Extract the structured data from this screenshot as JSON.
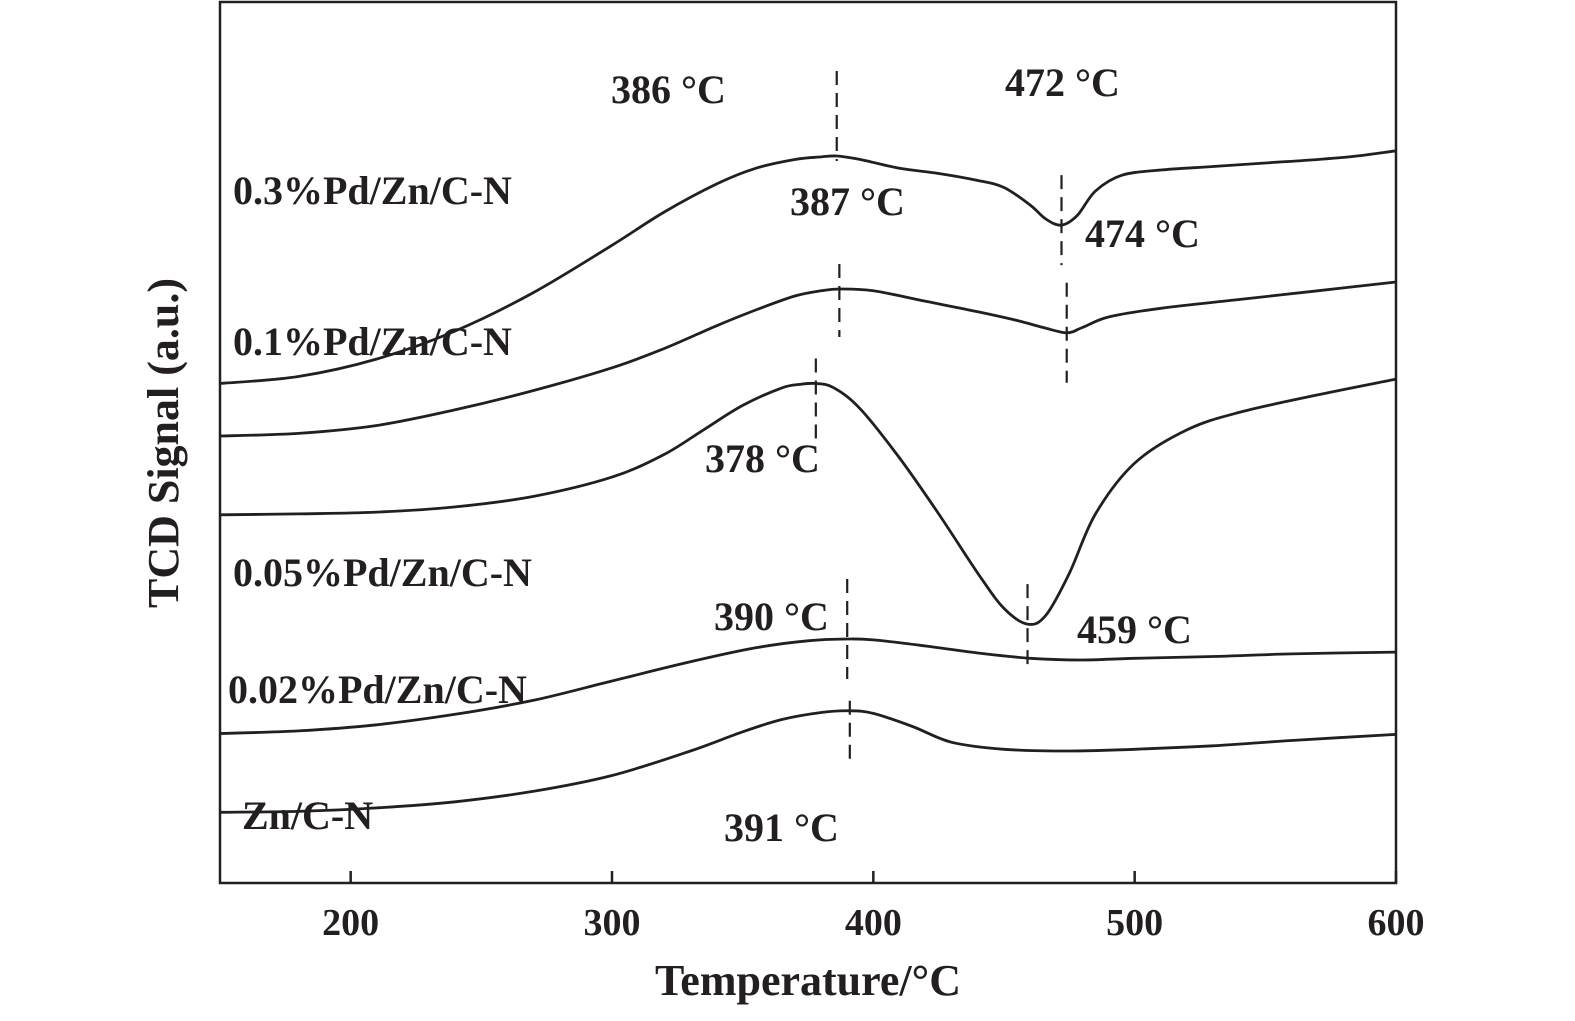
{
  "chart_data": {
    "type": "line",
    "title": "",
    "xlabel": "Temperature/°C",
    "ylabel": "TCD Signal (a.u.)",
    "xlim": [
      150,
      600
    ],
    "xticks": [
      200,
      300,
      400,
      500,
      600
    ],
    "xtick_labels": [
      "200",
      "300",
      "400",
      "500",
      "600"
    ],
    "y_units": "arbitrary (curves vertically offset)",
    "grid": false,
    "legend": "none (curves labeled directly)",
    "line_color": "#231f20",
    "series": [
      {
        "name": "0.3%Pd/Zn/C-N",
        "x": [
          150,
          180,
          210,
          240,
          270,
          300,
          320,
          340,
          355,
          370,
          380,
          386,
          395,
          410,
          425,
          440,
          450,
          460,
          466,
          472,
          478,
          485,
          495,
          510,
          530,
          550,
          570,
          585,
          600
        ],
        "y": [
          3.0,
          3.4,
          4.4,
          6.0,
          8.2,
          10.9,
          12.8,
          14.4,
          15.3,
          15.8,
          15.95,
          16.0,
          15.8,
          15.3,
          15.0,
          14.6,
          14.2,
          13.2,
          12.4,
          12.05,
          12.6,
          14.0,
          14.9,
          15.2,
          15.4,
          15.6,
          15.8,
          16.0,
          16.3
        ]
      },
      {
        "name": "0.1%Pd/Zn/C-N",
        "x": [
          150,
          180,
          210,
          240,
          270,
          300,
          320,
          340,
          355,
          370,
          380,
          387,
          400,
          420,
          440,
          455,
          465,
          474,
          480,
          490,
          510,
          540,
          570,
          600
        ],
        "y": [
          0.0,
          0.15,
          0.6,
          1.5,
          2.6,
          3.9,
          5.0,
          6.3,
          7.2,
          8.0,
          8.3,
          8.4,
          8.3,
          7.7,
          7.1,
          6.6,
          6.2,
          5.9,
          6.2,
          6.8,
          7.3,
          7.8,
          8.3,
          8.8
        ]
      },
      {
        "name": "0.05%Pd/Zn/C-N",
        "x": [
          150,
          180,
          210,
          240,
          270,
          300,
          320,
          335,
          350,
          365,
          372,
          378,
          385,
          395,
          410,
          425,
          440,
          450,
          459,
          466,
          475,
          485,
          500,
          520,
          540,
          570,
          600
        ],
        "y": [
          -4.5,
          -4.45,
          -4.35,
          -4.05,
          -3.45,
          -2.35,
          -1.05,
          0.35,
          1.75,
          2.75,
          2.95,
          3.0,
          2.75,
          1.55,
          -1.25,
          -4.45,
          -7.85,
          -9.85,
          -10.75,
          -10.25,
          -7.85,
          -4.45,
          -1.55,
          0.35,
          1.35,
          2.35,
          3.25
        ]
      },
      {
        "name": "0.02%Pd/Zn/C-N",
        "x": [
          150,
          180,
          210,
          240,
          270,
          300,
          330,
          355,
          375,
          390,
          400,
          420,
          440,
          460,
          480,
          500,
          530,
          560,
          600
        ],
        "y": [
          -17.0,
          -16.85,
          -16.5,
          -15.9,
          -15.1,
          -14.0,
          -12.9,
          -12.1,
          -11.7,
          -11.6,
          -11.65,
          -12.0,
          -12.4,
          -12.7,
          -12.8,
          -12.7,
          -12.6,
          -12.45,
          -12.35
        ]
      },
      {
        "name": "Zn/C-N",
        "x": [
          150,
          180,
          210,
          240,
          270,
          300,
          330,
          350,
          365,
          380,
          391,
          400,
          415,
          430,
          450,
          475,
          500,
          530,
          560,
          600
        ],
        "y": [
          -21.5,
          -21.45,
          -21.25,
          -20.9,
          -20.3,
          -19.4,
          -18.0,
          -16.9,
          -16.2,
          -15.8,
          -15.7,
          -15.85,
          -16.6,
          -17.5,
          -17.9,
          -18.0,
          -17.9,
          -17.7,
          -17.4,
          -17.05
        ]
      }
    ],
    "annotations": [
      {
        "series": "0.3%Pd/Zn/C-N",
        "x": 386,
        "text": "386 °C"
      },
      {
        "series": "0.3%Pd/Zn/C-N",
        "x": 472,
        "text": "472 °C"
      },
      {
        "series": "0.1%Pd/Zn/C-N",
        "x": 387,
        "text": "387 °C"
      },
      {
        "series": "0.1%Pd/Zn/C-N",
        "x": 474,
        "text": "474 °C"
      },
      {
        "series": "0.05%Pd/Zn/C-N",
        "x": 378,
        "text": "378 °C"
      },
      {
        "series": "0.05%Pd/Zn/C-N",
        "x": 459,
        "text": "459 °C"
      },
      {
        "series": "0.02%Pd/Zn/C-N",
        "x": 390,
        "text": "390 °C"
      },
      {
        "series": "Zn/C-N",
        "x": 391,
        "text": "391 °C"
      }
    ]
  }
}
